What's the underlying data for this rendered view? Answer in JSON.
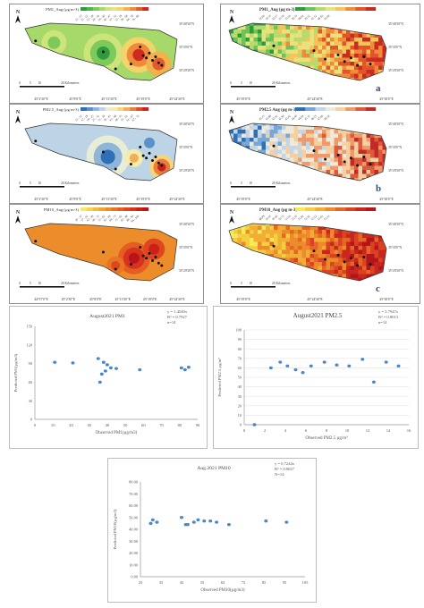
{
  "maps": [
    {
      "id": "pm1-idw",
      "title": "PM1_Aug (µg m-3)",
      "panel_letter": "",
      "colors": [
        "#2e9b3c",
        "#4fb54a",
        "#7dc95a",
        "#a6d86a",
        "#cde47a",
        "#e7e382",
        "#f4d36a",
        "#f2b14b",
        "#ee8a3a",
        "#e35b2c",
        "#cf2a22"
      ],
      "legend_values": [
        "11 - 15",
        "15 - 22",
        "22 - 28",
        "28 - 34",
        "34 - 40",
        "40 - 47",
        "47 - 52",
        "52 - 59",
        "59 - 68",
        "68 - 76",
        "76 - 86"
      ],
      "lon_labels": [
        "45°2'30\"E",
        "45°8'0\"E",
        "45°13'30\"E",
        "45°19'0\"E",
        "45°24'30\"E"
      ],
      "lat_labels": [
        "35°40'30\"N",
        "35°35'0\"N",
        "35°29'30\"N"
      ],
      "scale_labels": [
        "0",
        "5",
        "10",
        "20 Kilometers"
      ]
    },
    {
      "id": "pm1-sat",
      "title": "PM1_Aug (µg m-3)",
      "panel_letter": "a",
      "colors": [
        "#2e9b3c",
        "#6ec25a",
        "#b3dc6c",
        "#e8e27c",
        "#f4c45a",
        "#ef8c3a",
        "#e2552b",
        "#c92a22"
      ],
      "legend_values": [
        "10.66",
        "30.53",
        "32.17",
        "33.56",
        "35.04",
        "36.53",
        "38.04",
        "39.52",
        "41.12",
        "46.62",
        "50.08"
      ],
      "lon_labels": [
        "45°19'0\"E",
        "45°24'30\"E",
        "45°30'0\"E"
      ],
      "lat_labels": [
        "35°40'30\"N",
        "35°35'0\"N",
        "35°29'30\"N"
      ],
      "scale_labels": [
        "0",
        "5",
        "10",
        "20 Kilometers"
      ]
    },
    {
      "id": "pm25-idw",
      "title": "PM2.5_Aug (µg m-3)",
      "panel_letter": "",
      "colors": [
        "#2f6fb5",
        "#5b92c9",
        "#8fb6d9",
        "#bcd4e6",
        "#e7edd7",
        "#f4ecaa",
        "#f6d57a",
        "#f2ad56",
        "#e97d3c",
        "#db4b2c",
        "#c7241f"
      ],
      "legend_values": [
        "11 - 12",
        "12 - 19",
        "19 - 25",
        "25 - 31",
        "31 - 36",
        "36 - 43",
        "43 - 48",
        "48 - 55",
        "55 - 61",
        "61 - 67",
        "67 - 74"
      ],
      "lon_labels": [
        "45°2'30\"E",
        "45°8'0\"E",
        "45°13'30\"E",
        "45°19'0\"E",
        "45°24'30\"E"
      ],
      "lat_labels": [
        "35°40'30\"N",
        "35°35'0\"N",
        "35°29'30\"N"
      ],
      "scale_labels": [
        "0",
        "5",
        "10",
        "20 Kilometers"
      ]
    },
    {
      "id": "pm25-sat",
      "title": "PM2.5 Aug (µg m-3)",
      "panel_letter": "b",
      "colors": [
        "#2f6fb5",
        "#7aa6d3",
        "#c1d6ea",
        "#efe9dc",
        "#f6cfa0",
        "#ee9a6a",
        "#dd5a3c",
        "#c22a25"
      ],
      "legend_values": [
        "41.15",
        "41.86",
        "42.41",
        "42.84",
        "43.42",
        "44.00",
        "44.64",
        "45.35",
        "46.25",
        "47.66",
        "49.18"
      ],
      "lon_labels": [
        "45°19'0\"E",
        "45°24'30\"E",
        "45°30'0\"E"
      ],
      "lat_labels": [
        "35°40'30\"N",
        "35°35'0\"N",
        "35°29'30\"N"
      ],
      "scale_labels": [
        "0",
        "5",
        "10",
        "20 Kilometers"
      ]
    },
    {
      "id": "pm10-idw",
      "title": "PM10_Aug (µg m-3)",
      "panel_letter": "",
      "colors": [
        "#f6e96a",
        "#f5d34e",
        "#f3bb3c",
        "#f0a431",
        "#ed8c2a",
        "#e97426",
        "#e45d23",
        "#de4620",
        "#d7321d",
        "#cc1f1a",
        "#b8141a"
      ],
      "legend_values": [
        "30 - 37",
        "37 - 42",
        "42 - 49",
        "49 - 55",
        "55 - 62",
        "62 - 69",
        "69 - 75",
        "75 - 82",
        "82 - 88",
        "88 - 94",
        "94 - 100"
      ],
      "lon_labels": [
        "44°57'0\"E",
        "45°2'30\"E",
        "45°8'0\"E",
        "45°13'30\"E",
        "45°19'0\"E",
        "45°24'30\"E"
      ],
      "lat_labels": [
        "35°40'30\"N",
        "35°35'0\"N",
        "35°29'30\"N"
      ],
      "scale_labels": [
        "0",
        "5",
        "10",
        "20 Kilometers"
      ]
    },
    {
      "id": "pm10-sat",
      "title": "PM10_Aug (µg m-3)",
      "panel_letter": "c",
      "colors": [
        "#f4ea5a",
        "#f4cf40",
        "#f1ad34",
        "#ec8a2c",
        "#e56726",
        "#da4322",
        "#c9271e",
        "#b2161b"
      ],
      "legend_values": [
        "48.89",
        "50.05",
        "50.46",
        "50.73",
        "51.04",
        "51.35",
        "51.60",
        "51.92",
        "52.22",
        "52.62",
        "53.33"
      ],
      "lon_labels": [
        "45°19'0\"E",
        "45°24'30\"E",
        "45°30'0\"E"
      ],
      "lat_labels": [
        "35°40'30\"N",
        "35°35'0\"N",
        "35°29'30\"N"
      ],
      "scale_labels": [
        "0",
        "5",
        "10",
        "20 Kilometers"
      ]
    }
  ],
  "chart_data": [
    {
      "id": "pm1",
      "type": "scatter",
      "title": "August2021 PM1",
      "xlabel": "Observed PM1(µg/m3)",
      "ylabel": "Predicted PM1(µg/m3)",
      "xlim": [
        0,
        90
      ],
      "ylim": [
        0,
        150
      ],
      "xticks": [
        0,
        10,
        20,
        30,
        40,
        50,
        60,
        70,
        80,
        90
      ],
      "yticks": [
        0,
        30,
        60,
        90,
        120,
        150
      ],
      "equation": "y = 1.4540x",
      "r2": "R² = 0.7927",
      "n": "n=14",
      "marker_color": "#4a86c8",
      "x": [
        11,
        21,
        35,
        36,
        37,
        38,
        39,
        40,
        42,
        45,
        58,
        81,
        83,
        85
      ],
      "y": [
        92,
        91,
        98,
        60,
        73,
        92,
        78,
        88,
        83,
        82,
        80,
        83,
        80,
        84
      ]
    },
    {
      "id": "pm25",
      "type": "scatter",
      "title": "August2021 PM2.5",
      "xlabel": "Observed PM2.5 µg/m³",
      "ylabel": "Predicted PM2.5 µg/m³",
      "xlim": [
        0,
        16
      ],
      "ylim": [
        0,
        100
      ],
      "xticks": [
        0,
        2,
        4,
        6,
        8,
        10,
        12,
        14,
        16
      ],
      "yticks": [
        0,
        10,
        20,
        30,
        40,
        50,
        60,
        70,
        80,
        90,
        100
      ],
      "equation": "y = 5.7947x",
      "r2": "R² = 0.8013",
      "n": "n=14",
      "marker_color": "#4a86c8",
      "x": [
        1,
        2.6,
        3.5,
        4.2,
        5.0,
        5.7,
        6.5,
        7.8,
        9.0,
        10.2,
        11.5,
        12.6,
        13.8,
        15.0
      ],
      "y": [
        0,
        60,
        66,
        62,
        58,
        55,
        62,
        66,
        63,
        62,
        69,
        45,
        66,
        62
      ]
    },
    {
      "id": "pm10",
      "type": "scatter",
      "title": "Aug.2021 PM10",
      "xlabel": "Observed PM10(µg/m3)",
      "ylabel": "Predicted PM10(µg/m3)",
      "xlim": [
        25,
        105
      ],
      "ylim": [
        0,
        80
      ],
      "xticks": [
        25,
        35,
        45,
        55,
        65,
        75,
        85,
        95,
        105
      ],
      "ytick_labels": [
        "0.00",
        "10.00",
        "20.00",
        "30.00",
        "40.00",
        "50.00",
        "60.00",
        "70.00",
        "80.00"
      ],
      "equation": "y = 0.7244x",
      "r2": "R² = 0.9027",
      "n": "N=14",
      "marker_color": "#4a86c8",
      "x": [
        30,
        31,
        33,
        45,
        47,
        48,
        51,
        53,
        56,
        59,
        62,
        68,
        86,
        96
      ],
      "y": [
        45,
        48,
        46,
        50,
        44,
        44,
        46,
        48,
        47,
        47,
        46,
        44,
        47,
        46
      ]
    }
  ]
}
